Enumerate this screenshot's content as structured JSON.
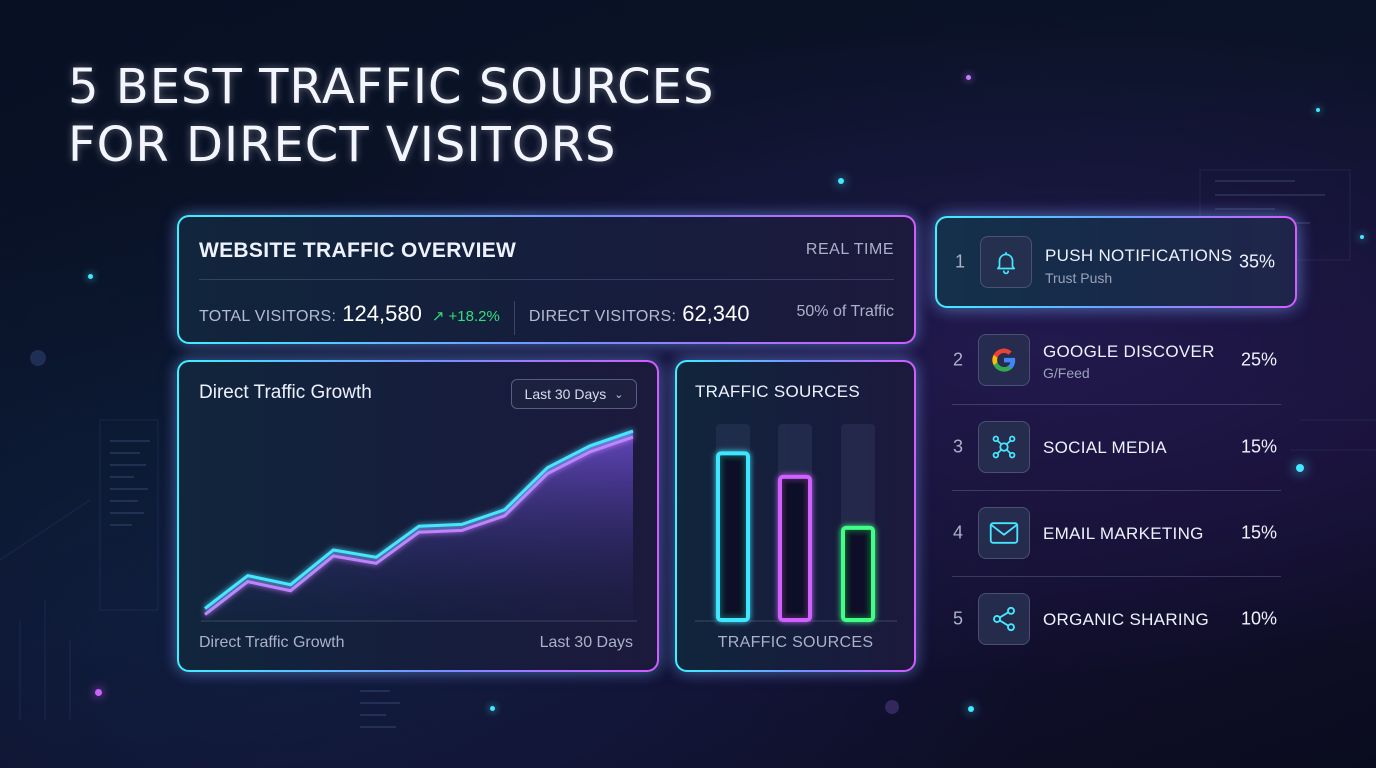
{
  "headline": [
    "5 BEST TRAFFIC SOURCES",
    "FOR DIRECT VISITORS"
  ],
  "overview": {
    "title": "WEBSITE TRAFFIC OVERVIEW",
    "mode": "REAL TIME",
    "total_label": "TOTAL VISITORS:",
    "total_value": "124,580",
    "growth": "↗ +18.2%",
    "direct_label": "DIRECT VISITORS:",
    "direct_value": "62,340",
    "share": "50% of Traffic"
  },
  "growth_panel": {
    "title": "Direct Traffic Growth",
    "range_select": "Last 30 Days",
    "footer_left": "Direct Traffic Growth",
    "footer_right": "Last 30 Days"
  },
  "sources_panel": {
    "title": "TRAFFIC SOURCES",
    "footer": "TRAFFIC SOURCES"
  },
  "sources_list": [
    {
      "rank": "1",
      "name": "PUSH NOTIFICATIONS",
      "sub": "Trust Push",
      "pct": "35%",
      "icon": "bell-icon",
      "active": true
    },
    {
      "rank": "2",
      "name": "GOOGLE DISCOVER",
      "sub": "G/Feed",
      "pct": "25%",
      "icon": "google-icon",
      "active": false
    },
    {
      "rank": "3",
      "name": "SOCIAL MEDIA",
      "sub": "",
      "pct": "15%",
      "icon": "network-icon",
      "active": false
    },
    {
      "rank": "4",
      "name": "EMAIL MARKETING",
      "sub": "",
      "pct": "15%",
      "icon": "mail-icon",
      "active": false
    },
    {
      "rank": "5",
      "name": "ORGANIC SHARING",
      "sub": "",
      "pct": "10%",
      "icon": "share-icon",
      "active": false
    }
  ],
  "chart_data": [
    {
      "type": "area",
      "title": "Direct Traffic Growth",
      "x": [
        1,
        2,
        3,
        4,
        5,
        6,
        7,
        8,
        9,
        10,
        11
      ],
      "values": [
        3,
        21,
        16,
        35,
        31,
        48,
        49,
        57,
        80,
        92,
        100
      ],
      "ylim": [
        0,
        105
      ],
      "grid": false,
      "colors": {
        "line": "#46e6ff",
        "line2": "#c77dff",
        "fill": "#6a4bd6"
      }
    },
    {
      "type": "bar",
      "title": "TRAFFIC SOURCES",
      "categories": [
        "",
        "",
        ""
      ],
      "values": [
        85,
        73,
        47
      ],
      "ylim": [
        0,
        100
      ],
      "colors": [
        "#3fe6ff",
        "#d060ff",
        "#3fff86"
      ]
    }
  ]
}
